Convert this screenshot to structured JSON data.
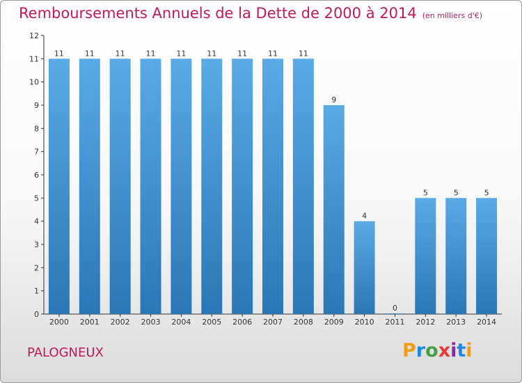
{
  "header": {
    "title": "Remboursements Annuels de la Dette de 2000 à 2014",
    "unit": "(en milliers d'€)"
  },
  "footer": {
    "commune": "PALOGNEUX",
    "logo_letters": [
      "P",
      "r",
      "o",
      "x",
      "i",
      "t",
      "i"
    ]
  },
  "colors": {
    "bar_top": "#5aaae6",
    "bar_bottom": "#2a77b6",
    "title": "#c2185b",
    "axis": "#333333"
  },
  "chart_data": {
    "type": "bar",
    "title": "Remboursements Annuels de la Dette de 2000 à 2014",
    "xlabel": "",
    "ylabel": "",
    "categories": [
      "2000",
      "2001",
      "2002",
      "2003",
      "2004",
      "2005",
      "2006",
      "2007",
      "2008",
      "2009",
      "2010",
      "2011",
      "2012",
      "2013",
      "2014"
    ],
    "values": [
      11,
      11,
      11,
      11,
      11,
      11,
      11,
      11,
      11,
      9,
      4,
      0,
      5,
      5,
      5
    ],
    "ylim": [
      0,
      12
    ],
    "yticks": [
      "0",
      "1",
      "2",
      "3",
      "4",
      "5",
      "6",
      "7",
      "8",
      "9",
      "10",
      "11",
      "12"
    ],
    "grid": false,
    "legend": "none"
  }
}
